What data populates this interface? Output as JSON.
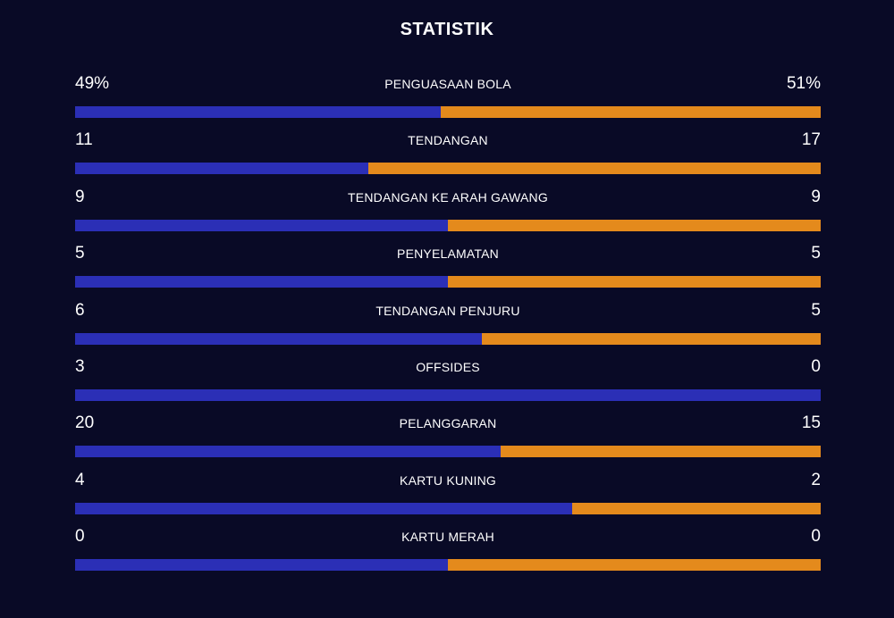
{
  "title": "STATISTIK",
  "colors": {
    "background": "#090a26",
    "home": "#2b2fb6",
    "away": "#e48a1c"
  },
  "stats": [
    {
      "label": "PENGUASAAN BOLA",
      "home": "49%",
      "away": "51%",
      "home_share": 0.49
    },
    {
      "label": "TENDANGAN",
      "home": "11",
      "away": "17",
      "home_share": 0.393
    },
    {
      "label": "TENDANGAN KE ARAH GAWANG",
      "home": "9",
      "away": "9",
      "home_share": 0.5
    },
    {
      "label": "PENYELAMATAN",
      "home": "5",
      "away": "5",
      "home_share": 0.5
    },
    {
      "label": "TENDANGAN PENJURU",
      "home": "6",
      "away": "5",
      "home_share": 0.545
    },
    {
      "label": "OFFSIDES",
      "home": "3",
      "away": "0",
      "home_share": 1.0
    },
    {
      "label": "PELANGGARAN",
      "home": "20",
      "away": "15",
      "home_share": 0.571
    },
    {
      "label": "KARTU KUNING",
      "home": "4",
      "away": "2",
      "home_share": 0.667
    },
    {
      "label": "KARTU MERAH",
      "home": "0",
      "away": "0",
      "home_share": 0.5
    }
  ]
}
